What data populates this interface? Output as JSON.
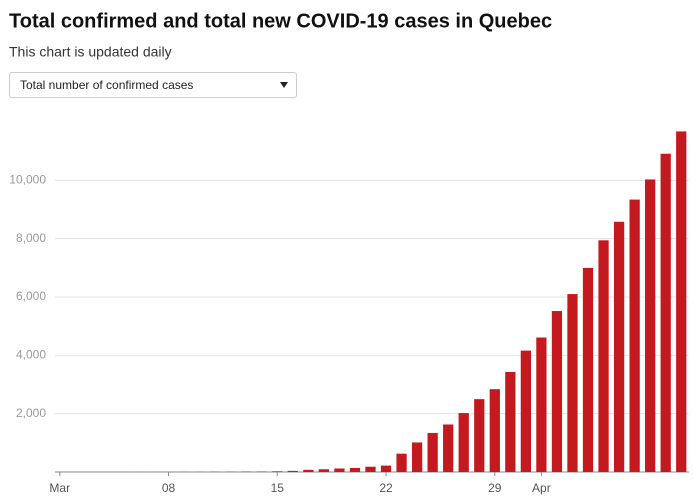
{
  "chart_data": {
    "type": "bar",
    "title": "Total confirmed and total new COVID-19 cases in Quebec",
    "subtitle": "This chart is updated daily",
    "dropdown": "Total number of confirmed cases",
    "categories": [
      "Mar",
      null,
      null,
      null,
      null,
      null,
      null,
      "08",
      null,
      null,
      null,
      null,
      null,
      null,
      "15",
      null,
      null,
      null,
      null,
      null,
      null,
      "22",
      null,
      null,
      null,
      null,
      null,
      null,
      "29",
      null,
      null,
      "Apr",
      null,
      null,
      null,
      null,
      null,
      null,
      null,
      null,
      null
    ],
    "values": [
      1,
      1,
      1,
      1,
      2,
      2,
      2,
      2,
      3,
      4,
      7,
      9,
      13,
      17,
      24,
      39,
      74,
      94,
      121,
      139,
      181,
      219,
      628,
      1013,
      1339,
      1629,
      2021,
      2498,
      2840,
      3430,
      4162,
      4611,
      5518,
      6101,
      6997,
      7944,
      8580,
      9340,
      10031,
      10912,
      11677
    ],
    "color": "#c41a1f",
    "ylim": [
      0,
      12000
    ],
    "yticks": [
      {
        "value": 2000,
        "label": "2,000"
      },
      {
        "value": 4000,
        "label": "4,000"
      },
      {
        "value": 6000,
        "label": "6,000"
      },
      {
        "value": 8000,
        "label": "8,000"
      },
      {
        "value": 10000,
        "label": "10,000"
      }
    ],
    "grid": true
  }
}
